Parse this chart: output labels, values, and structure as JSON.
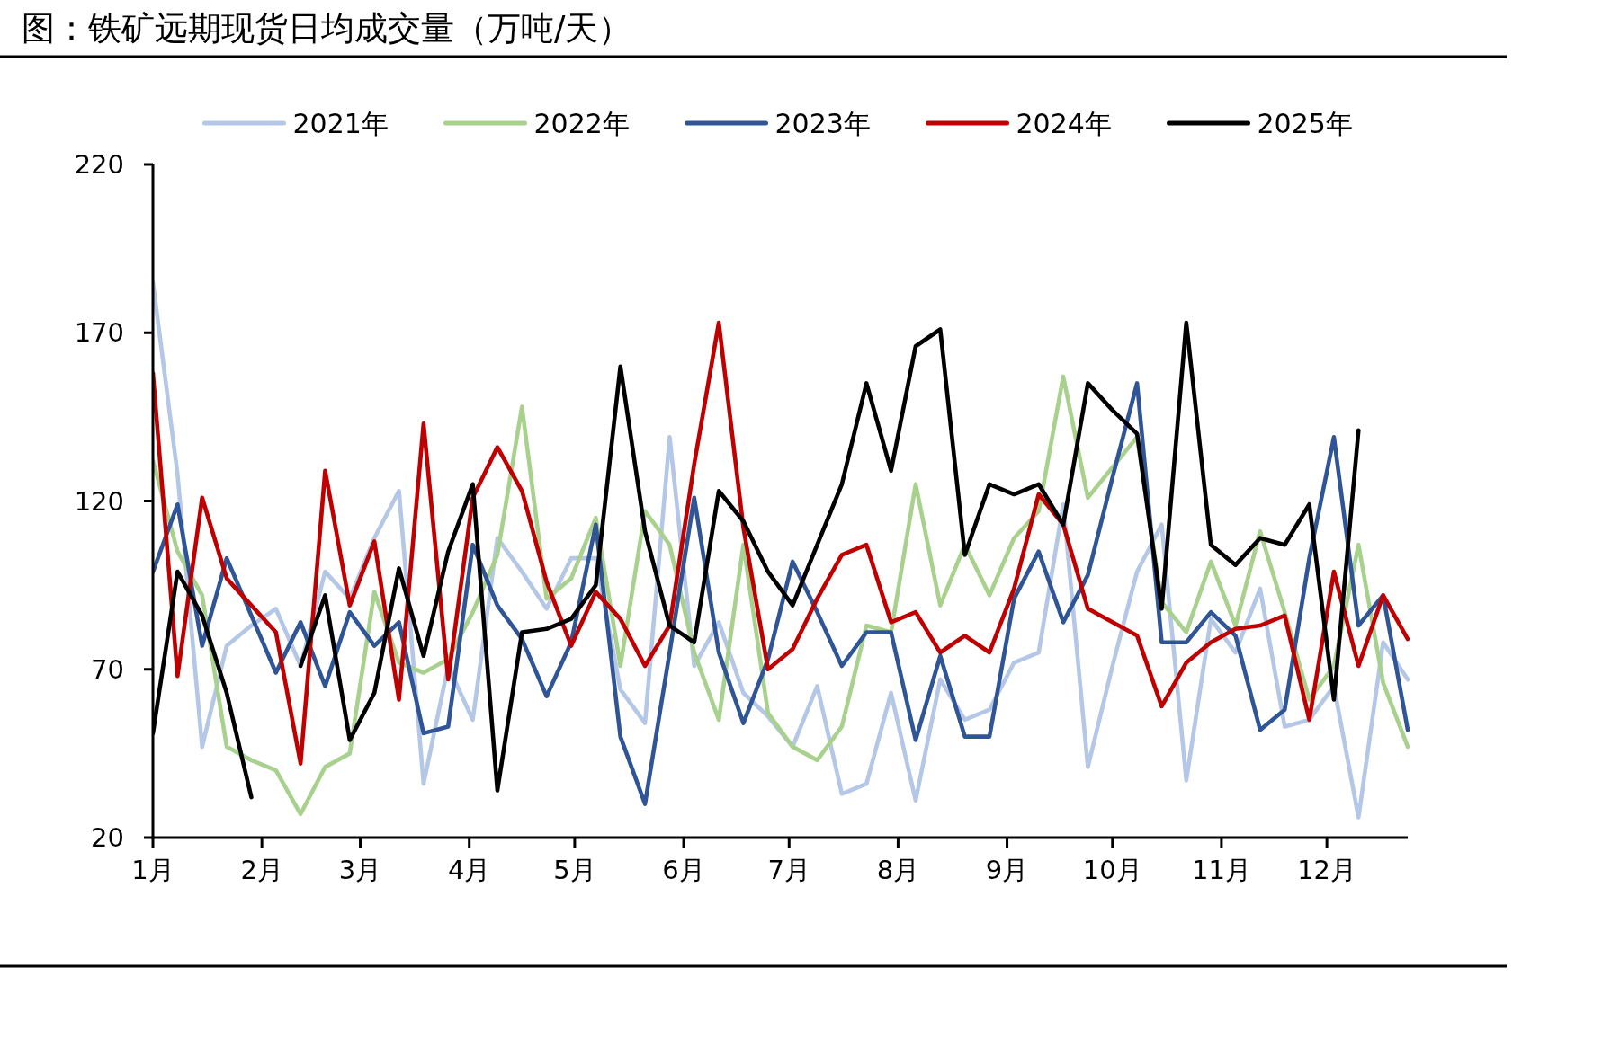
{
  "chart_data": {
    "type": "line",
    "title": "图：铁矿远期现货日均成交量（万吨/天）",
    "x": [
      "--01-01",
      "--01-08",
      "--01-15",
      "--01-22",
      "--01-29",
      "--02-05",
      "--02-12",
      "--02-19",
      "--02-26",
      "--03-05",
      "--03-12",
      "--03-19",
      "--03-26",
      "--04-02",
      "--04-09",
      "--04-16",
      "--04-23",
      "--04-30",
      "--05-07",
      "--05-14",
      "--05-21",
      "--05-28",
      "--06-04",
      "--06-11",
      "--06-18",
      "--06-25",
      "--07-02",
      "--07-09",
      "--07-16",
      "--07-23",
      "--07-30",
      "--08-06",
      "--08-13",
      "--08-20",
      "--08-27",
      "--09-03",
      "--09-10",
      "--09-17",
      "--09-24",
      "--10-01",
      "--10-08",
      "--10-15",
      "--10-22",
      "--10-29",
      "--11-05",
      "--11-12",
      "--11-19",
      "--11-26",
      "--12-03",
      "--12-10",
      "--12-17",
      "--12-24"
    ],
    "series": [
      {
        "name": "2021年",
        "color": "#b4c7e7",
        "values": [
          185,
          128,
          47,
          77,
          83,
          88,
          71,
          99,
          91,
          109,
          123,
          36,
          71,
          55,
          109,
          99,
          88,
          103,
          103,
          64,
          54,
          139,
          71,
          84,
          63,
          56,
          47,
          65,
          33,
          36,
          63,
          31,
          67,
          55,
          58,
          72,
          75,
          119,
          41,
          71,
          99,
          113,
          37,
          85,
          75,
          94,
          53,
          55,
          65,
          26,
          78,
          67
        ]
      },
      {
        "name": "2022年",
        "color": "#a9d18e",
        "values": [
          132,
          105,
          92,
          47,
          43,
          40,
          27,
          41,
          45,
          93,
          72,
          69,
          73,
          87,
          104,
          148,
          91,
          97,
          115,
          71,
          117,
          107,
          75,
          55,
          107,
          57,
          47,
          43,
          53,
          83,
          81,
          125,
          89,
          107,
          92,
          109,
          117,
          157,
          121,
          130,
          139,
          90,
          81,
          102,
          83,
          111,
          87,
          61,
          71,
          107,
          66,
          47
        ]
      },
      {
        "name": "2023年",
        "color": "#2f5597",
        "values": [
          99,
          119,
          77,
          103,
          86,
          69,
          84,
          65,
          87,
          77,
          84,
          51,
          53,
          107,
          89,
          79,
          62,
          78,
          113,
          50,
          30,
          75,
          121,
          75,
          54,
          73,
          102,
          87,
          71,
          81,
          81,
          49,
          74,
          50,
          50,
          91,
          105,
          84,
          98,
          127,
          155,
          78,
          78,
          87,
          80,
          52,
          58,
          103,
          139,
          83,
          92,
          52
        ]
      },
      {
        "name": "2024年",
        "color": "#c00000",
        "values": [
          158,
          68,
          121,
          97,
          89,
          81,
          42,
          129,
          89,
          108,
          61,
          143,
          67,
          121,
          136,
          123,
          96,
          77,
          93,
          85,
          71,
          83,
          131,
          173,
          112,
          70,
          76,
          91,
          104,
          107,
          84,
          87,
          75,
          80,
          75,
          94,
          122,
          113,
          88,
          84,
          80,
          59,
          72,
          78,
          82,
          83,
          86,
          55,
          99,
          71,
          92,
          79
        ]
      },
      {
        "name": "2025年",
        "color": "#000000",
        "values": [
          51,
          99,
          86,
          63,
          32,
          null,
          71,
          92,
          49,
          63,
          100,
          74,
          105,
          125,
          34,
          81,
          82,
          85,
          95,
          160,
          111,
          83,
          78,
          123,
          114,
          99,
          89,
          107,
          125,
          155,
          129,
          166,
          171,
          104,
          125,
          122,
          125,
          113,
          155,
          147,
          140,
          88,
          173,
          107,
          101,
          109,
          107,
          119,
          61,
          141,
          null,
          null
        ]
      }
    ],
    "xlim": [
      "--01-01",
      "--12-24"
    ],
    "xticks": [
      {
        "value": "--01-01",
        "label": "1月"
      },
      {
        "value": "--02-01",
        "label": "2月"
      },
      {
        "value": "--03-01",
        "label": "3月"
      },
      {
        "value": "--04-01",
        "label": "4月"
      },
      {
        "value": "--05-01",
        "label": "5月"
      },
      {
        "value": "--06-01",
        "label": "6月"
      },
      {
        "value": "--07-01",
        "label": "7月"
      },
      {
        "value": "--08-01",
        "label": "8月"
      },
      {
        "value": "--09-01",
        "label": "9月"
      },
      {
        "value": "--10-01",
        "label": "10月"
      },
      {
        "value": "--11-01",
        "label": "11月"
      },
      {
        "value": "--12-01",
        "label": "12月"
      }
    ],
    "ylim": [
      20,
      220
    ],
    "yticks": [
      20,
      70,
      120,
      170,
      220
    ],
    "legend": "top",
    "grid": false,
    "line_style": "solid",
    "marker": "none"
  }
}
